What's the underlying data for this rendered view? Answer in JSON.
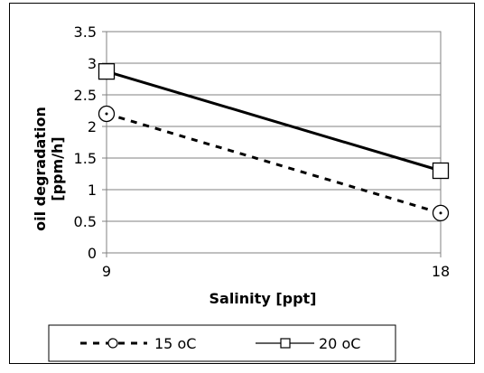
{
  "chart_data": {
    "type": "line",
    "xlabel": "Salinity [ppt]",
    "ylabel_line1": "oil degradation",
    "ylabel_line2": "[ppm/h]",
    "categories": [
      "9",
      "18"
    ],
    "x": [
      9,
      18
    ],
    "ylim": [
      0,
      3.5
    ],
    "yticks": [
      "0",
      "0.5",
      "1",
      "1.5",
      "2",
      "2.5",
      "3",
      "3.5"
    ],
    "grid": true,
    "legend_position": "bottom",
    "series": [
      {
        "name": "15 oC",
        "x": [
          9,
          18
        ],
        "values": [
          2.2,
          0.63
        ],
        "style": "dashed",
        "marker": "circle",
        "color": "#000000"
      },
      {
        "name": "20 oC",
        "x": [
          9,
          18
        ],
        "values": [
          2.87,
          1.3
        ],
        "style": "solid",
        "marker": "square",
        "color": "#000000"
      }
    ]
  }
}
